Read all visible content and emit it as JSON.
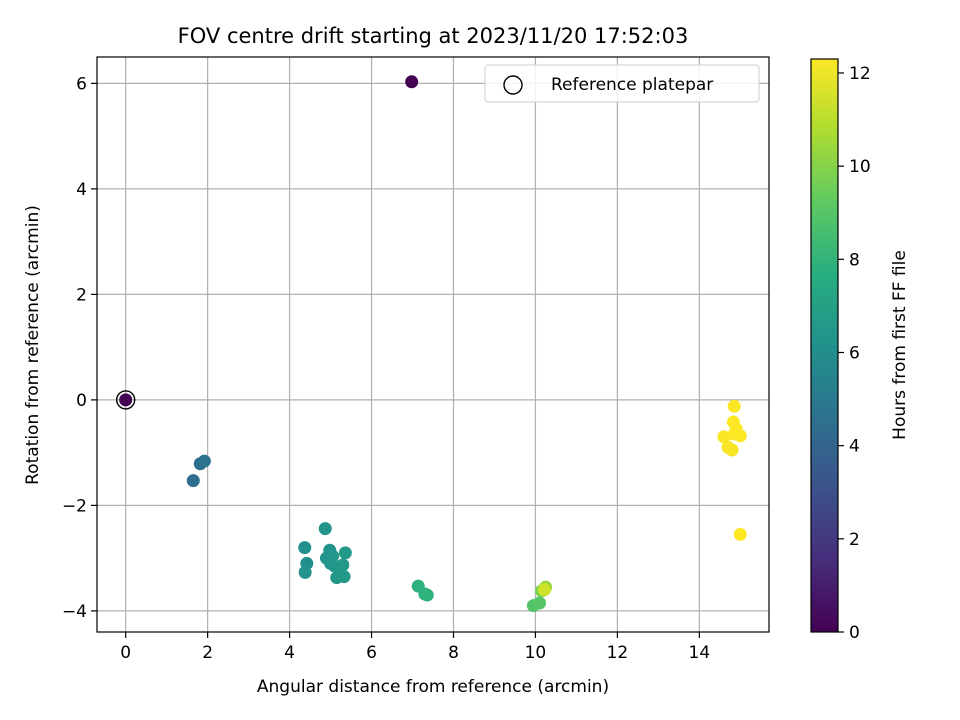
{
  "chart_data": {
    "type": "scatter",
    "title": "FOV centre drift starting at 2023/11/20 17:52:03",
    "xlabel": "Angular distance from reference (arcmin)",
    "ylabel": "Rotation from reference (arcmin)",
    "xlim": [
      -0.7,
      15.7
    ],
    "ylim": [
      -4.4,
      6.5
    ],
    "xticks": [
      0,
      2,
      4,
      6,
      8,
      10,
      12,
      14
    ],
    "yticks": [
      -4,
      -2,
      0,
      2,
      4,
      6
    ],
    "grid": true,
    "legend": {
      "position": "top-right",
      "entries": [
        "Reference platepar"
      ]
    },
    "reference": {
      "x": 0,
      "y": 0
    },
    "colorbar": {
      "label": "Hours from first FF file",
      "range": [
        0,
        12.3
      ],
      "ticks": [
        0,
        2,
        4,
        6,
        8,
        10,
        12
      ],
      "colormap": "viridis"
    },
    "points": [
      {
        "x": 6.98,
        "y": 6.03,
        "hours": 0.0
      },
      {
        "x": 0.0,
        "y": 0.0,
        "hours": 0.0
      },
      {
        "x": 1.65,
        "y": -1.53,
        "hours": 4.4
      },
      {
        "x": 1.82,
        "y": -1.21,
        "hours": 4.5
      },
      {
        "x": 1.92,
        "y": -1.16,
        "hours": 4.6
      },
      {
        "x": 4.37,
        "y": -2.8,
        "hours": 6.1
      },
      {
        "x": 4.42,
        "y": -3.1,
        "hours": 6.1
      },
      {
        "x": 4.38,
        "y": -3.27,
        "hours": 6.2
      },
      {
        "x": 4.87,
        "y": -2.44,
        "hours": 6.3
      },
      {
        "x": 4.9,
        "y": -3.0,
        "hours": 6.3
      },
      {
        "x": 4.98,
        "y": -2.85,
        "hours": 6.3
      },
      {
        "x": 5.0,
        "y": -3.1,
        "hours": 6.4
      },
      {
        "x": 5.05,
        "y": -2.96,
        "hours": 6.4
      },
      {
        "x": 5.1,
        "y": -3.15,
        "hours": 6.4
      },
      {
        "x": 5.15,
        "y": -3.37,
        "hours": 6.5
      },
      {
        "x": 5.22,
        "y": -3.2,
        "hours": 6.5
      },
      {
        "x": 5.3,
        "y": -3.13,
        "hours": 6.5
      },
      {
        "x": 5.33,
        "y": -3.35,
        "hours": 6.6
      },
      {
        "x": 5.36,
        "y": -2.9,
        "hours": 6.6
      },
      {
        "x": 7.14,
        "y": -3.53,
        "hours": 7.8
      },
      {
        "x": 7.3,
        "y": -3.68,
        "hours": 7.9
      },
      {
        "x": 7.36,
        "y": -3.7,
        "hours": 7.9
      },
      {
        "x": 9.95,
        "y": -3.9,
        "hours": 8.9
      },
      {
        "x": 10.1,
        "y": -3.85,
        "hours": 9.0
      },
      {
        "x": 10.15,
        "y": -3.62,
        "hours": 9.8
      },
      {
        "x": 10.25,
        "y": -3.55,
        "hours": 10.3
      },
      {
        "x": 10.22,
        "y": -3.6,
        "hours": 11.4
      },
      {
        "x": 14.6,
        "y": -0.7,
        "hours": 12.2
      },
      {
        "x": 14.7,
        "y": -0.9,
        "hours": 12.2
      },
      {
        "x": 14.8,
        "y": -0.95,
        "hours": 12.2
      },
      {
        "x": 14.85,
        "y": -0.65,
        "hours": 12.3
      },
      {
        "x": 14.83,
        "y": -0.42,
        "hours": 12.3
      },
      {
        "x": 14.85,
        "y": -0.12,
        "hours": 12.3
      },
      {
        "x": 14.9,
        "y": -0.55,
        "hours": 12.3
      },
      {
        "x": 15.0,
        "y": -0.68,
        "hours": 12.3
      },
      {
        "x": 15.0,
        "y": -2.55,
        "hours": 12.3
      }
    ]
  }
}
